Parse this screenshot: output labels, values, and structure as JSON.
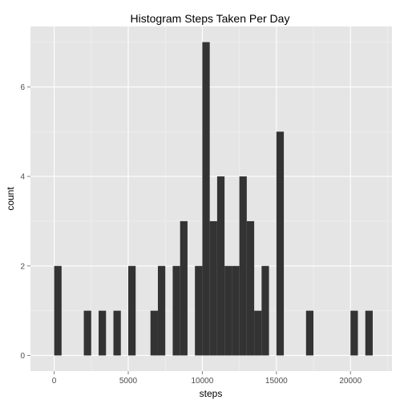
{
  "chart_data": {
    "type": "bar",
    "title": "Histogram Steps Taken Per Day",
    "xlabel": "steps",
    "ylabel": "count",
    "xlim": [
      -1600,
      22800
    ],
    "ylim": [
      -0.35,
      7.35
    ],
    "xticks": [
      0,
      5000,
      10000,
      15000,
      20000
    ],
    "yticks": [
      0,
      2,
      4,
      6
    ],
    "binwidth": 500,
    "bins": [
      {
        "x": 250,
        "count": 2
      },
      {
        "x": 2250,
        "count": 1
      },
      {
        "x": 3250,
        "count": 1
      },
      {
        "x": 4250,
        "count": 1
      },
      {
        "x": 5250,
        "count": 2
      },
      {
        "x": 6750,
        "count": 1
      },
      {
        "x": 7250,
        "count": 2
      },
      {
        "x": 8250,
        "count": 2
      },
      {
        "x": 8750,
        "count": 3
      },
      {
        "x": 9750,
        "count": 2
      },
      {
        "x": 10250,
        "count": 7
      },
      {
        "x": 10750,
        "count": 3
      },
      {
        "x": 11250,
        "count": 4
      },
      {
        "x": 11750,
        "count": 2
      },
      {
        "x": 12250,
        "count": 2
      },
      {
        "x": 12750,
        "count": 4
      },
      {
        "x": 13250,
        "count": 3
      },
      {
        "x": 13750,
        "count": 1
      },
      {
        "x": 14250,
        "count": 2
      },
      {
        "x": 15250,
        "count": 5
      },
      {
        "x": 17250,
        "count": 1
      },
      {
        "x": 20250,
        "count": 1
      },
      {
        "x": 21250,
        "count": 1
      }
    ],
    "bar_color": "#333333",
    "panel_color": "#e5e5e5",
    "grid_major_color": "#ffffff",
    "grid_minor_color": "#f2f2f2",
    "grid": true
  }
}
